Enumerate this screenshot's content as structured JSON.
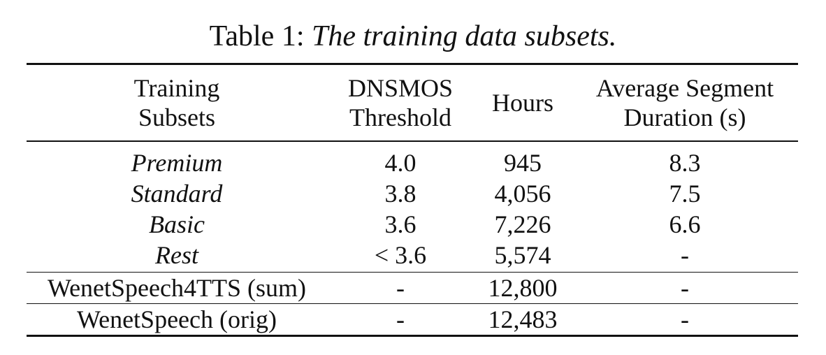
{
  "caption": {
    "label": "Table 1:",
    "text": "The training data subsets."
  },
  "headers": {
    "training_subsets": [
      "Training",
      "Subsets"
    ],
    "dnsmos_threshold": [
      "DNSMOS",
      "Threshold"
    ],
    "hours": "Hours",
    "avg_segment_duration": [
      "Average Segment",
      "Duration (s)"
    ]
  },
  "subsets": [
    {
      "name": "Premium",
      "threshold": "4.0",
      "hours": "945",
      "duration": "8.3"
    },
    {
      "name": "Standard",
      "threshold": "3.8",
      "hours": "4,056",
      "duration": "7.5"
    },
    {
      "name": "Basic",
      "threshold": "3.6",
      "hours": "7,226",
      "duration": "6.6"
    },
    {
      "name": "Rest",
      "threshold": "< 3.6",
      "hours": "5,574",
      "duration": "-"
    }
  ],
  "summary": [
    {
      "name": "WenetSpeech4TTS (sum)",
      "threshold": "-",
      "hours": "12,800",
      "duration": "-"
    },
    {
      "name": "WenetSpeech (orig)",
      "threshold": "-",
      "hours": "12,483",
      "duration": "-"
    }
  ]
}
